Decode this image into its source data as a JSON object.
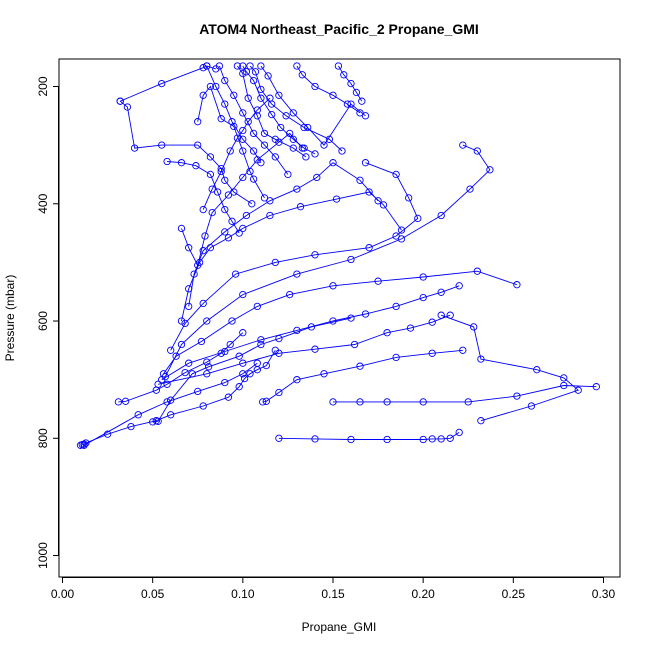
{
  "chart_data": {
    "type": "line",
    "title": "ATOM4 Northeast_Pacific_2 Propane_GMI",
    "xlabel": "Propane_GMI",
    "ylabel": "Pressure (mbar)",
    "xlim": [
      0.0,
      0.3
    ],
    "ylim": [
      1000,
      160
    ],
    "y_reversed": true,
    "x_ticks": [
      0.0,
      0.05,
      0.1,
      0.15,
      0.2,
      0.25,
      0.3
    ],
    "x_tick_labels": [
      "0.00",
      "0.05",
      "0.10",
      "0.15",
      "0.20",
      "0.25",
      "0.30"
    ],
    "y_ticks": [
      200,
      400,
      600,
      800,
      1000
    ],
    "y_tick_labels": [
      "200",
      "400",
      "600",
      "800",
      "1000"
    ],
    "grid": false,
    "legend": "none",
    "marker": "open-circle",
    "color": "#0000ff",
    "series": [
      {
        "x": [
          0.01,
          0.011,
          0.012,
          0.013,
          0.025,
          0.038,
          0.052,
          0.06,
          0.078,
          0.092,
          0.098,
          0.101,
          0.104,
          0.108,
          0.113,
          0.118
        ],
        "y": [
          812,
          811,
          810,
          808,
          793,
          780,
          770,
          760,
          745,
          730,
          712,
          698,
          690,
          683,
          676,
          650
        ]
      },
      {
        "x": [
          0.012,
          0.042,
          0.058,
          0.075,
          0.09,
          0.1,
          0.108
        ],
        "y": [
          812,
          760,
          738,
          720,
          705,
          690,
          672
        ]
      },
      {
        "x": [
          0.031,
          0.035,
          0.052,
          0.058,
          0.068,
          0.08,
          0.088,
          0.093,
          0.1
        ],
        "y": [
          738,
          737,
          718,
          708,
          688,
          670,
          655,
          640,
          620
        ]
      },
      {
        "x": [
          0.05,
          0.053,
          0.06,
          0.072,
          0.081,
          0.098,
          0.11,
          0.12,
          0.138,
          0.16
        ],
        "y": [
          772,
          771,
          735,
          690,
          678,
          660,
          640,
          630,
          610,
          595
        ]
      },
      {
        "x": [
          0.111,
          0.113,
          0.12,
          0.13,
          0.145,
          0.165,
          0.185,
          0.205,
          0.222
        ],
        "y": [
          738,
          737,
          722,
          700,
          690,
          677,
          662,
          655,
          650
        ]
      },
      {
        "x": [
          0.12,
          0.14,
          0.16,
          0.18,
          0.2,
          0.205,
          0.21,
          0.215,
          0.22
        ],
        "y": [
          800,
          801,
          802,
          802,
          802,
          801,
          801,
          800,
          790
        ]
      },
      {
        "x": [
          0.15,
          0.165,
          0.18,
          0.2,
          0.225,
          0.252,
          0.278,
          0.296
        ],
        "y": [
          738,
          738,
          738,
          738,
          738,
          728,
          710,
          712
        ]
      },
      {
        "x": [
          0.232,
          0.26,
          0.286,
          0.278,
          0.263,
          0.232,
          0.228,
          0.21
        ],
        "y": [
          770,
          745,
          718,
          697,
          683,
          665,
          610,
          590
        ]
      },
      {
        "x": [
          0.053,
          0.08,
          0.1,
          0.12,
          0.14,
          0.162,
          0.18,
          0.193,
          0.205,
          0.215
        ],
        "y": [
          708,
          690,
          672,
          655,
          648,
          640,
          620,
          612,
          602,
          590
        ]
      },
      {
        "x": [
          0.055,
          0.07,
          0.09,
          0.11,
          0.13,
          0.15,
          0.168,
          0.185,
          0.2,
          0.21,
          0.22
        ],
        "y": [
          700,
          672,
          652,
          632,
          616,
          600,
          588,
          575,
          560,
          551,
          540
        ]
      },
      {
        "x": [
          0.056,
          0.063,
          0.077,
          0.094,
          0.108,
          0.126,
          0.15,
          0.175,
          0.2,
          0.23,
          0.252
        ],
        "y": [
          690,
          660,
          635,
          600,
          575,
          555,
          540,
          532,
          525,
          515,
          538
        ]
      },
      {
        "x": [
          0.057,
          0.066,
          0.08,
          0.1,
          0.13,
          0.16,
          0.188,
          0.21,
          0.226,
          0.237,
          0.23,
          0.222
        ],
        "y": [
          695,
          640,
          600,
          555,
          520,
          495,
          460,
          420,
          375,
          342,
          310,
          300
        ]
      },
      {
        "x": [
          0.06,
          0.068,
          0.078,
          0.096,
          0.118,
          0.14,
          0.17,
          0.185,
          0.197,
          0.192,
          0.185,
          0.168
        ],
        "y": [
          650,
          604,
          570,
          520,
          500,
          487,
          475,
          455,
          425,
          390,
          350,
          330
        ]
      },
      {
        "x": [
          0.066,
          0.07,
          0.076,
          0.082,
          0.092,
          0.1,
          0.115,
          0.132,
          0.152,
          0.17,
          0.178,
          0.188
        ],
        "y": [
          600,
          545,
          500,
          475,
          458,
          442,
          420,
          405,
          392,
          380,
          402,
          445
        ]
      },
      {
        "x": [
          0.07,
          0.073,
          0.078,
          0.09,
          0.102,
          0.115,
          0.13,
          0.141,
          0.15,
          0.165,
          0.175
        ],
        "y": [
          575,
          520,
          480,
          448,
          420,
          395,
          375,
          355,
          330,
          360,
          395
        ]
      },
      {
        "x": [
          0.066,
          0.07,
          0.075,
          0.079,
          0.083,
          0.092,
          0.1,
          0.108,
          0.12,
          0.126,
          0.133
        ],
        "y": [
          442,
          475,
          505,
          455,
          415,
          385,
          355,
          325,
          295,
          280,
          305
        ]
      },
      {
        "x": [
          0.078,
          0.083,
          0.088,
          0.093,
          0.097,
          0.1,
          0.103,
          0.108,
          0.115
        ],
        "y": [
          410,
          375,
          345,
          310,
          288,
          275,
          260,
          240,
          220
        ]
      },
      {
        "x": [
          0.032,
          0.036,
          0.04,
          0.055,
          0.075,
          0.082,
          0.088,
          0.09,
          0.095,
          0.105
        ],
        "y": [
          225,
          235,
          305,
          300,
          300,
          320,
          340,
          360,
          380,
          400
        ]
      },
      {
        "x": [
          0.032,
          0.055,
          0.078,
          0.08,
          0.085
        ],
        "y": [
          225,
          195,
          168,
          165,
          170
        ]
      },
      {
        "x": [
          0.058,
          0.066,
          0.074,
          0.082,
          0.086,
          0.09,
          0.094,
          0.098
        ],
        "y": [
          328,
          330,
          335,
          350,
          380,
          410,
          430,
          450
        ]
      },
      {
        "x": [
          0.075,
          0.078,
          0.082,
          0.088,
          0.095,
          0.1,
          0.104,
          0.106,
          0.112
        ],
        "y": [
          260,
          215,
          200,
          255,
          268,
          310,
          345,
          358,
          390
        ]
      },
      {
        "x": [
          0.08,
          0.085,
          0.09,
          0.094,
          0.1,
          0.106,
          0.11
        ],
        "y": [
          165,
          200,
          230,
          260,
          290,
          310,
          330
        ]
      },
      {
        "x": [
          0.087,
          0.09,
          0.095,
          0.1,
          0.106,
          0.112,
          0.118,
          0.125
        ],
        "y": [
          165,
          190,
          215,
          245,
          280,
          300,
          320,
          350
        ]
      },
      {
        "x": [
          0.11,
          0.114,
          0.12,
          0.128,
          0.136,
          0.145,
          0.16,
          0.168
        ],
        "y": [
          165,
          182,
          215,
          245,
          270,
          300,
          230,
          250
        ]
      },
      {
        "x": [
          0.097,
          0.1,
          0.103,
          0.108,
          0.112,
          0.118,
          0.128,
          0.135
        ],
        "y": [
          165,
          178,
          220,
          250,
          280,
          290,
          305,
          320
        ]
      },
      {
        "x": [
          0.104,
          0.107,
          0.11,
          0.116,
          0.124,
          0.134,
          0.148,
          0.155
        ],
        "y": [
          165,
          175,
          205,
          230,
          250,
          270,
          290,
          310
        ]
      },
      {
        "x": [
          0.13,
          0.133,
          0.14,
          0.15,
          0.158,
          0.165
        ],
        "y": [
          165,
          180,
          200,
          215,
          230,
          245
        ]
      },
      {
        "x": [
          0.153,
          0.156,
          0.16,
          0.163,
          0.166
        ],
        "y": [
          165,
          180,
          195,
          210,
          225
        ]
      },
      {
        "x": [
          0.1,
          0.102,
          0.106,
          0.11,
          0.116,
          0.121,
          0.128,
          0.134,
          0.14
        ],
        "y": [
          165,
          175,
          190,
          220,
          248,
          270,
          290,
          305,
          315
        ]
      }
    ]
  }
}
